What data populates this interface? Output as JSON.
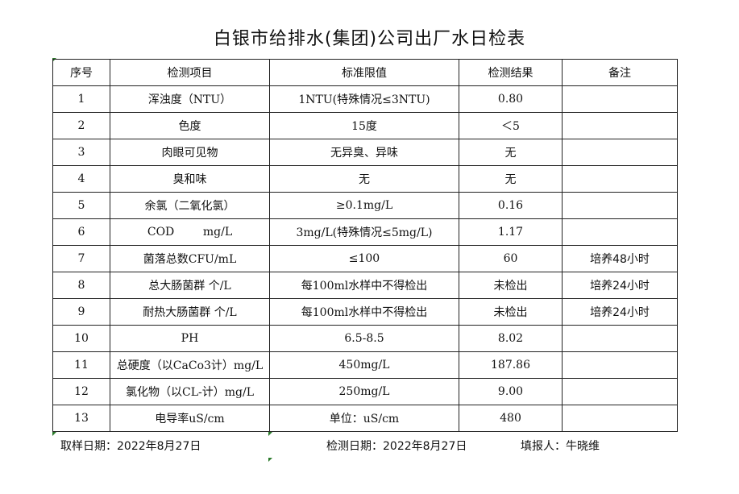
{
  "title": "白银市给排水(集团)公司出厂水日检表",
  "headers": [
    "序号",
    "检测项目",
    "标准限值",
    "检测结果",
    "备注"
  ],
  "rows": [
    [
      "1",
      "浑浊度（NTU）",
      "1NTU(特殊情况≤3NTU)",
      "0.80",
      ""
    ],
    [
      "2",
      "色度",
      "15度",
      "＜5",
      ""
    ],
    [
      "3",
      "肉眼可见物",
      "无异臭、异味",
      "无",
      ""
    ],
    [
      "4",
      "臭和味",
      "无",
      "无",
      ""
    ],
    [
      "5",
      "余氯（二氧化氯）",
      "≥0.1mg/L",
      "0.16",
      ""
    ],
    [
      "6",
      "COD        mg/L",
      "3mg/L(特殊情况≤5mg/L)",
      "1.17",
      ""
    ],
    [
      "7",
      "菌落总数CFU/mL",
      "≤100",
      "60",
      "培养48小时"
    ],
    [
      "8",
      "总大肠菌群 个/L",
      "每100ml水样中不得检出",
      "未检出",
      "培养24小时"
    ],
    [
      "9",
      "耐热大肠菌群 个/L",
      "每100ml水样中不得检出",
      "未检出",
      "培养24小时"
    ],
    [
      "10",
      "PH",
      "6.5-8.5",
      "8.02",
      ""
    ],
    [
      "11",
      "总硬度（以CaCo3计）mg/L",
      "450mg/L",
      "187.86",
      ""
    ],
    [
      "12",
      "氯化物（以CL-计）mg/L",
      "250mg/L",
      "9.00",
      ""
    ],
    [
      "13",
      "电导率uS/cm",
      "单位：uS/cm",
      "480",
      ""
    ]
  ],
  "footer": {
    "sampling_date": "取样日期：2022年8月27日",
    "test_date": "检测日期：2022年8月27日",
    "reporter": "填报人：牛晓维"
  }
}
